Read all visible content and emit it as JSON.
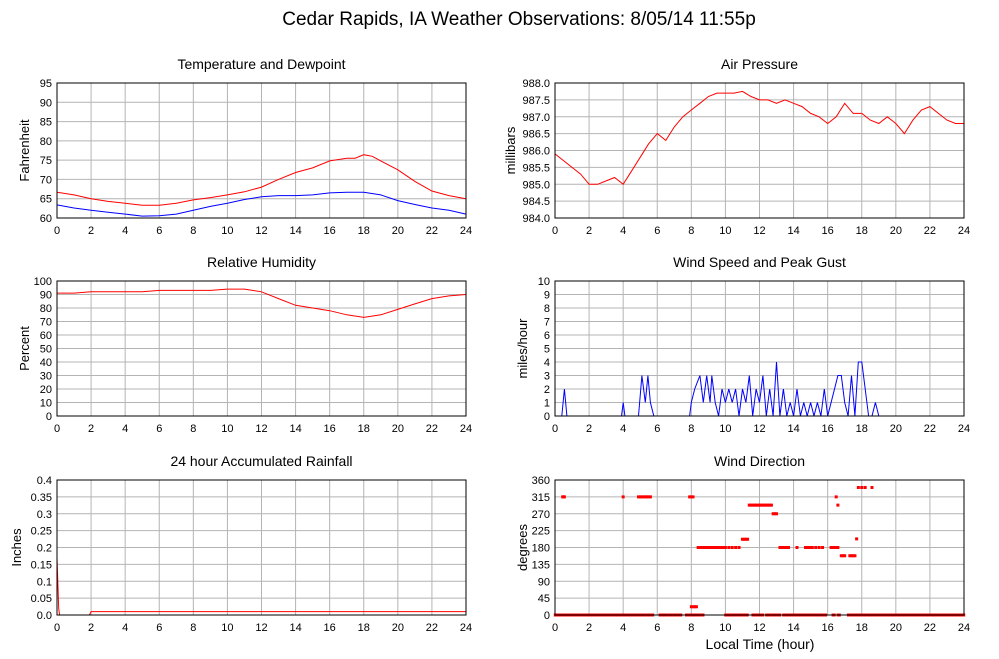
{
  "figure_title": "Cedar Rapids, IA Weather Observations: 8/05/14 11:55p",
  "xaxis_label": "Local Time (hour)",
  "chart_data": [
    {
      "id": "temperature",
      "type": "line",
      "title": "Temperature and Dewpoint",
      "ylabel": "Fahrenheit",
      "xlabel": "",
      "xlim": [
        0,
        24
      ],
      "ylim": [
        60,
        95
      ],
      "xticks": [
        0,
        2,
        4,
        6,
        8,
        10,
        12,
        14,
        16,
        18,
        20,
        22,
        24
      ],
      "yticks": [
        60,
        65,
        70,
        75,
        80,
        85,
        90,
        95
      ],
      "xtick_labels": [
        "0",
        "2",
        "4",
        "6",
        "8",
        "10",
        "12",
        "14",
        "16",
        "18",
        "20",
        "22",
        "24"
      ],
      "ytick_labels": [
        "60",
        "65",
        "70",
        "75",
        "80",
        "85",
        "90",
        "95"
      ],
      "grid": true,
      "series": [
        {
          "color": "#ff0000",
          "x": [
            0,
            1,
            2,
            3,
            4,
            5,
            6,
            7,
            8,
            9,
            10,
            11,
            12,
            13,
            14,
            15,
            16,
            17,
            17.5,
            18,
            18.5,
            19,
            20,
            21,
            22,
            23,
            24
          ],
          "y": [
            66.7,
            66,
            65,
            64.3,
            63.8,
            63.3,
            63.3,
            63.8,
            64.7,
            65.3,
            66,
            66.8,
            68,
            70,
            71.8,
            73,
            74.8,
            75.5,
            75.5,
            76.4,
            76,
            74.8,
            72.5,
            69.5,
            67,
            65.8,
            65
          ]
        },
        {
          "color": "#0000ff",
          "x": [
            0,
            1,
            2,
            3,
            4,
            5,
            6,
            7,
            8,
            9,
            10,
            11,
            12,
            13,
            14,
            15,
            16,
            17,
            18,
            19,
            20,
            21,
            22,
            23,
            24
          ],
          "y": [
            63.4,
            62.6,
            62,
            61.5,
            61,
            60.5,
            60.6,
            61,
            62,
            63,
            63.8,
            64.8,
            65.5,
            65.8,
            65.8,
            66,
            66.5,
            66.7,
            66.7,
            66,
            64.5,
            63.5,
            62.6,
            62,
            61
          ]
        }
      ]
    },
    {
      "id": "pressure",
      "type": "line",
      "title": "Air Pressure",
      "ylabel": "millibars",
      "xlabel": "",
      "xlim": [
        0,
        24
      ],
      "ylim": [
        984.0,
        988.0
      ],
      "xticks": [
        0,
        2,
        4,
        6,
        8,
        10,
        12,
        14,
        16,
        18,
        20,
        22,
        24
      ],
      "yticks": [
        984.0,
        984.5,
        985.0,
        985.5,
        986.0,
        986.5,
        987.0,
        987.5,
        988.0
      ],
      "xtick_labels": [
        "0",
        "2",
        "4",
        "6",
        "8",
        "10",
        "12",
        "14",
        "16",
        "18",
        "20",
        "22",
        "24"
      ],
      "ytick_labels": [
        "984.0",
        "984.5",
        "985.0",
        "985.5",
        "986.0",
        "986.5",
        "987.0",
        "987.5",
        "988.0"
      ],
      "grid": true,
      "series": [
        {
          "color": "#ff0000",
          "x": [
            0,
            0.5,
            1,
            1.5,
            2,
            2.5,
            3,
            3.5,
            4,
            4.5,
            5,
            5.5,
            6,
            6.5,
            7,
            7.5,
            8,
            8.5,
            9,
            9.5,
            10,
            10.5,
            11,
            11.5,
            12,
            12.5,
            13,
            13.5,
            14,
            14.5,
            15,
            15.5,
            16,
            16.5,
            17,
            17.5,
            18,
            18.5,
            19,
            19.5,
            20,
            20.5,
            21,
            21.5,
            22,
            22.5,
            23,
            23.5,
            24
          ],
          "y": [
            985.9,
            985.7,
            985.5,
            985.3,
            985.0,
            985.0,
            985.1,
            985.2,
            985.0,
            985.4,
            985.8,
            986.2,
            986.5,
            986.3,
            986.7,
            987.0,
            987.2,
            987.4,
            987.6,
            987.7,
            987.7,
            987.7,
            987.75,
            987.6,
            987.5,
            987.5,
            987.4,
            987.5,
            987.4,
            987.3,
            987.1,
            987.0,
            986.8,
            987.0,
            987.4,
            987.1,
            987.1,
            986.9,
            986.8,
            987.0,
            986.8,
            986.5,
            986.9,
            987.2,
            987.3,
            987.1,
            986.9,
            986.8,
            986.8
          ]
        }
      ]
    },
    {
      "id": "humidity",
      "type": "line",
      "title": "Relative Humidity",
      "ylabel": "Percent",
      "xlabel": "",
      "xlim": [
        0,
        24
      ],
      "ylim": [
        0,
        100
      ],
      "xticks": [
        0,
        2,
        4,
        6,
        8,
        10,
        12,
        14,
        16,
        18,
        20,
        22,
        24
      ],
      "yticks": [
        0,
        10,
        20,
        30,
        40,
        50,
        60,
        70,
        80,
        90,
        100
      ],
      "xtick_labels": [
        "0",
        "2",
        "4",
        "6",
        "8",
        "10",
        "12",
        "14",
        "16",
        "18",
        "20",
        "22",
        "24"
      ],
      "ytick_labels": [
        "0",
        "10",
        "20",
        "30",
        "40",
        "50",
        "60",
        "70",
        "80",
        "90",
        "100"
      ],
      "grid": true,
      "series": [
        {
          "color": "#ff0000",
          "x": [
            0,
            1,
            2,
            3,
            4,
            5,
            6,
            7,
            8,
            9,
            10,
            11,
            12,
            13,
            14,
            15,
            16,
            17,
            18,
            19,
            20,
            21,
            22,
            23,
            24
          ],
          "y": [
            91,
            91,
            92,
            92,
            92,
            92,
            93,
            93,
            93,
            93,
            94,
            94,
            92,
            87,
            82,
            80,
            78,
            75,
            73,
            75,
            79,
            83,
            87,
            89,
            90
          ]
        }
      ]
    },
    {
      "id": "wind_speed",
      "type": "line",
      "title": "Wind Speed and Peak Gust",
      "ylabel": "miles/hour",
      "xlabel": "",
      "xlim": [
        0,
        24
      ],
      "ylim": [
        0,
        10
      ],
      "xticks": [
        0,
        2,
        4,
        6,
        8,
        10,
        12,
        14,
        16,
        18,
        20,
        22,
        24
      ],
      "yticks": [
        0,
        1,
        2,
        3,
        4,
        5,
        6,
        7,
        8,
        9,
        10
      ],
      "xtick_labels": [
        "0",
        "2",
        "4",
        "6",
        "8",
        "10",
        "12",
        "14",
        "16",
        "18",
        "20",
        "22",
        "24"
      ],
      "ytick_labels": [
        "0",
        "1",
        "2",
        "3",
        "4",
        "5",
        "6",
        "7",
        "8",
        "9",
        "10"
      ],
      "grid": true,
      "series": [
        {
          "color": "#0000ff",
          "x": [
            0,
            0.4,
            0.55,
            0.7,
            3.9,
            4.0,
            4.1,
            4.9,
            5.1,
            5.3,
            5.45,
            5.6,
            5.8,
            7.9,
            8.0,
            8.2,
            8.5,
            8.7,
            8.9,
            9.1,
            9.2,
            9.4,
            9.6,
            9.8,
            10.0,
            10.2,
            10.4,
            10.6,
            10.8,
            11.0,
            11.2,
            11.4,
            11.6,
            11.8,
            12.0,
            12.2,
            12.4,
            12.6,
            12.8,
            13.0,
            13.2,
            13.4,
            13.6,
            13.8,
            14.0,
            14.2,
            14.4,
            14.6,
            14.8,
            15.0,
            15.2,
            15.4,
            15.6,
            15.8,
            16.0,
            16.2,
            16.4,
            16.6,
            16.8,
            17.0,
            17.2,
            17.4,
            17.6,
            17.8,
            18.0,
            18.2,
            18.4,
            18.6,
            18.8,
            19.0,
            24
          ],
          "y": [
            0,
            0,
            2,
            0,
            0,
            1,
            0,
            0,
            3,
            1,
            3,
            1,
            0,
            0,
            1,
            2,
            3,
            1,
            3,
            1,
            3,
            1,
            0,
            2,
            1,
            2,
            1,
            2,
            0,
            2,
            1,
            3,
            0,
            2,
            1,
            3,
            0,
            2,
            0,
            4,
            0,
            2,
            0,
            1,
            0,
            2,
            0,
            1,
            0,
            1,
            0,
            1,
            0,
            2,
            0,
            1,
            2,
            3,
            3,
            1,
            0,
            3,
            0,
            4,
            4,
            2,
            0,
            0,
            1,
            0,
            0
          ]
        }
      ]
    },
    {
      "id": "rainfall",
      "type": "line",
      "title": "24 hour Accumulated Rainfall",
      "ylabel": "Inches",
      "xlabel": "",
      "xlim": [
        0,
        24
      ],
      "ylim": [
        0,
        0.4
      ],
      "xticks": [
        0,
        2,
        4,
        6,
        8,
        10,
        12,
        14,
        16,
        18,
        20,
        22,
        24
      ],
      "yticks": [
        0,
        0.05,
        0.1,
        0.15,
        0.2,
        0.25,
        0.3,
        0.35,
        0.4
      ],
      "xtick_labels": [
        "0",
        "2",
        "4",
        "6",
        "8",
        "10",
        "12",
        "14",
        "16",
        "18",
        "20",
        "22",
        "24"
      ],
      "ytick_labels": [
        "0.0",
        "0.05",
        "0.1",
        "0.15",
        "0.2",
        "0.25",
        "0.3",
        "0.35",
        "0.4"
      ],
      "grid": true,
      "series": [
        {
          "color": "#ff0000",
          "x": [
            0,
            0.05,
            0.1,
            0.15,
            1.9,
            2.0,
            24
          ],
          "y": [
            0.17,
            0.09,
            0.02,
            0,
            0,
            0.01,
            0.01
          ]
        }
      ]
    },
    {
      "id": "wind_direction",
      "type": "scatter",
      "title": "Wind Direction",
      "ylabel": "degrees",
      "xlabel": "Local Time (hour)",
      "xlim": [
        0,
        24
      ],
      "ylim": [
        0,
        360
      ],
      "xticks": [
        0,
        2,
        4,
        6,
        8,
        10,
        12,
        14,
        16,
        18,
        20,
        22,
        24
      ],
      "yticks": [
        0,
        45,
        90,
        135,
        180,
        225,
        270,
        315,
        360
      ],
      "xtick_labels": [
        "0",
        "2",
        "4",
        "6",
        "8",
        "10",
        "12",
        "14",
        "16",
        "18",
        "20",
        "22",
        "24"
      ],
      "ytick_labels": [
        "0",
        "45",
        "90",
        "135",
        "180",
        "225",
        "270",
        "315",
        "360"
      ],
      "grid": true,
      "series": [
        {
          "color": "#ff0000",
          "x": [
            0.45,
            0.5,
            0.55,
            4.0,
            4.9,
            5.0,
            5.1,
            5.2,
            5.3,
            5.4,
            5.5,
            5.6,
            7.9,
            8.0,
            8.1,
            8.0,
            8.1,
            8.2,
            8.3,
            8.4,
            8.5,
            8.6,
            8.7,
            8.8,
            8.9,
            9.0,
            9.1,
            9.2,
            9.3,
            9.4,
            9.5,
            9.6,
            9.7,
            9.8,
            9.9,
            10.0,
            10.2,
            10.4,
            10.6,
            10.8,
            11.0,
            11.1,
            11.2,
            11.3,
            11.4,
            11.5,
            11.6,
            11.7,
            11.8,
            11.9,
            12.0,
            12.1,
            12.2,
            12.3,
            12.4,
            12.5,
            12.6,
            12.7,
            12.8,
            12.9,
            13.0,
            13.2,
            13.3,
            13.4,
            13.5,
            13.6,
            13.7,
            14.2,
            14.7,
            14.8,
            14.9,
            15.0,
            15.1,
            15.3,
            15.5,
            15.7,
            16.2,
            16.3,
            16.4,
            16.5,
            16.6,
            16.5,
            16.6,
            16.8,
            16.9,
            17.0,
            17.3,
            17.4,
            17.5,
            17.6,
            17.7,
            17.8,
            18.0,
            18.2,
            18.6
          ],
          "y": [
            315,
            315,
            315,
            315,
            315,
            315,
            315,
            315,
            315,
            315,
            315,
            315,
            315,
            315,
            315,
            22,
            22,
            22,
            22,
            180,
            180,
            180,
            180,
            180,
            180,
            180,
            180,
            180,
            180,
            180,
            180,
            180,
            180,
            180,
            180,
            180,
            180,
            180,
            180,
            180,
            202,
            202,
            202,
            202,
            293,
            293,
            293,
            293,
            293,
            293,
            293,
            293,
            293,
            293,
            293,
            293,
            293,
            293,
            270,
            270,
            270,
            180,
            180,
            180,
            180,
            180,
            180,
            180,
            180,
            180,
            180,
            180,
            180,
            180,
            180,
            180,
            180,
            180,
            180,
            180,
            180,
            315,
            293,
            158,
            158,
            158,
            158,
            158,
            158,
            158,
            203,
            340,
            340,
            340,
            340
          ]
        },
        {
          "color": "#ff0000",
          "x_range": [
            0,
            24
          ],
          "y_const": 0,
          "note_gaps": [
            [
              5.75,
              6.15
            ],
            [
              7.4,
              7.7
            ],
            [
              8.7,
              10.0
            ],
            [
              11.3,
              11.6
            ],
            [
              12.2,
              12.4
            ],
            [
              13.2,
              13.4
            ],
            [
              15.9,
              16.3
            ],
            [
              16.4,
              16.6
            ],
            [
              16.7,
              17.2
            ]
          ]
        }
      ]
    }
  ]
}
